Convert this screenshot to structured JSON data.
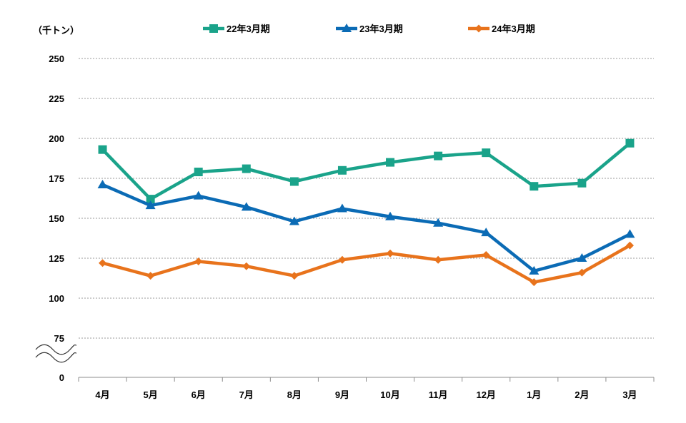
{
  "chart_data": {
    "type": "line",
    "unit_label": "（千トン）",
    "categories": [
      "4月",
      "5月",
      "6月",
      "7月",
      "8月",
      "9月",
      "10月",
      "11月",
      "12月",
      "1月",
      "2月",
      "3月"
    ],
    "y_ticks": [
      "250",
      "225",
      "200",
      "175",
      "150",
      "125",
      "100",
      "75",
      "0"
    ],
    "y_tick_values": [
      250,
      225,
      200,
      175,
      150,
      125,
      100,
      75
    ],
    "ylim": [
      75,
      250
    ],
    "axis_break": true,
    "grid": true,
    "legend_position": "top",
    "series": [
      {
        "name": "22年3月期",
        "color": "#1AA38A",
        "marker": "square",
        "values": [
          193,
          162,
          179,
          181,
          173,
          180,
          185,
          189,
          191,
          170,
          172,
          197
        ]
      },
      {
        "name": "23年3月期",
        "color": "#0B6BB5",
        "marker": "triangle",
        "values": [
          171,
          158,
          164,
          157,
          148,
          156,
          151,
          147,
          141,
          117,
          125,
          140
        ]
      },
      {
        "name": "24年3月期",
        "color": "#E8731C",
        "marker": "diamond",
        "values": [
          122,
          114,
          123,
          120,
          114,
          124,
          128,
          124,
          127,
          110,
          116,
          133
        ]
      }
    ]
  }
}
